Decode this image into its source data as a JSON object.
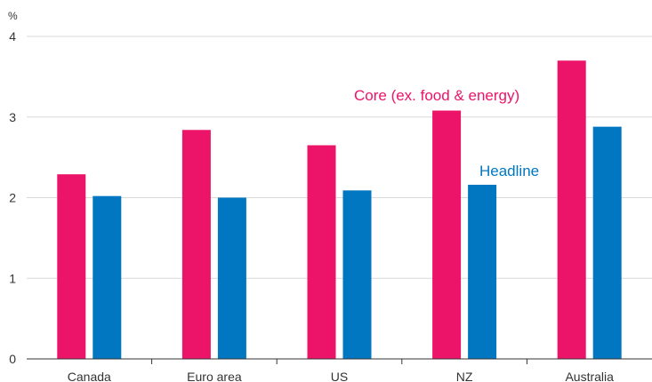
{
  "chart_data": {
    "type": "bar",
    "unit_label": "%",
    "categories": [
      "Canada",
      "Euro area",
      "US",
      "NZ",
      "Australia"
    ],
    "yticks": [
      "0",
      "1",
      "2",
      "3",
      "4"
    ],
    "ylim": [
      0,
      4
    ],
    "grid": true,
    "series": [
      {
        "name": "Core (ex. food & energy)",
        "color": "#EC1468",
        "values": [
          2.29,
          2.84,
          2.65,
          3.08,
          3.7
        ]
      },
      {
        "name": "Headline",
        "color": "#0077C0",
        "values": [
          2.02,
          2.0,
          2.09,
          2.16,
          2.88
        ]
      }
    ]
  }
}
